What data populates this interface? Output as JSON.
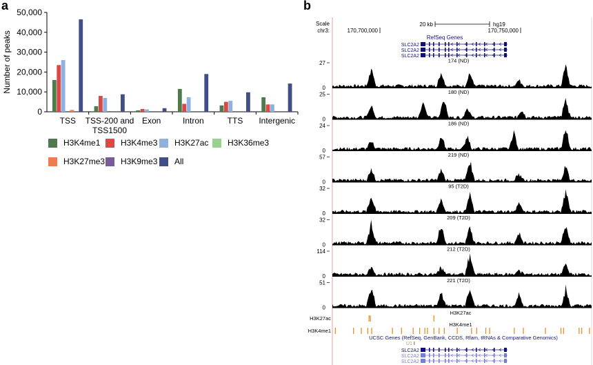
{
  "panel_a_label": "a",
  "panel_b_label": "b",
  "colors": {
    "H3K4me1": "#4f7a4e",
    "H3K4me3": "#d84a47",
    "H3K27ac": "#8fb0e0",
    "H3K36me3": "#9ad18f",
    "H3K27me3": "#ef7b50",
    "H3K9me3": "#7b5a9a",
    "All": "#414f86",
    "ucsc_blue": "#10107a",
    "ucsc_light": "#7b7ed0",
    "peak_orange": "#e0902a",
    "track_line": "#e8a0a0"
  },
  "chart_data": [
    {
      "type": "bar",
      "ylabel": "Number of peaks",
      "ylim": [
        0,
        50000
      ],
      "yticks": [
        "0",
        "10,000",
        "20,000",
        "30,000",
        "40,000",
        "50,000"
      ],
      "categories": [
        "TSS",
        "TSS-200 and\nTSS1500",
        "Exon",
        "Intron",
        "TTS",
        "Intergenic"
      ],
      "series": [
        {
          "name": "H3K4me1",
          "values": [
            16000,
            2800,
            700,
            11500,
            3200,
            7300
          ]
        },
        {
          "name": "H3K4me3",
          "values": [
            23500,
            8000,
            1400,
            4000,
            5000,
            3700
          ]
        },
        {
          "name": "H3K27ac",
          "values": [
            26000,
            7000,
            1200,
            7300,
            5500,
            3700
          ]
        },
        {
          "name": "H3K36me3",
          "values": [
            0,
            0,
            0,
            0,
            0,
            0
          ]
        },
        {
          "name": "H3K27me3",
          "values": [
            900,
            0,
            0,
            0,
            0,
            0
          ]
        },
        {
          "name": "H3K9me3",
          "values": [
            0,
            0,
            0,
            0,
            0,
            0
          ]
        },
        {
          "name": "All",
          "values": [
            46500,
            8800,
            1800,
            19000,
            9800,
            14200
          ]
        }
      ],
      "legend": "bottom"
    },
    {
      "type": "area",
      "header": {
        "scale_label": "Scale",
        "chrom_label": "chr3:",
        "scale_bar_label": "20 kb",
        "assembly": "hg19",
        "positions": [
          "170,700,000",
          "170,750,000"
        ],
        "refseq_title": "RefSeq Genes",
        "gene_label": "SLC2A2"
      },
      "tracks": [
        {
          "name": "174 (ND)",
          "ymax": "27",
          "peaks": [
            [
              0.15,
              0.9
            ],
            [
              0.42,
              0.7
            ],
            [
              0.53,
              0.6
            ],
            [
              0.72,
              0.3
            ],
            [
              0.9,
              1.0
            ]
          ]
        },
        {
          "name": "180 (ND)",
          "ymax": "25",
          "peaks": [
            [
              0.15,
              0.6
            ],
            [
              0.35,
              0.8
            ],
            [
              0.43,
              1.0
            ],
            [
              0.52,
              0.5
            ],
            [
              0.73,
              0.4
            ],
            [
              0.9,
              0.9
            ]
          ]
        },
        {
          "name": "186 (ND)",
          "ymax": "24",
          "peaks": [
            [
              0.15,
              0.4
            ],
            [
              0.42,
              0.6
            ],
            [
              0.52,
              0.6
            ],
            [
              0.7,
              0.8
            ],
            [
              0.9,
              1.0
            ]
          ]
        },
        {
          "name": "219 (ND)",
          "ymax": "57",
          "peaks": [
            [
              0.15,
              0.6
            ],
            [
              0.42,
              0.5
            ],
            [
              0.53,
              1.0
            ],
            [
              0.72,
              0.3
            ],
            [
              0.9,
              0.7
            ]
          ]
        },
        {
          "name": "95 (T2D)",
          "ymax": "32",
          "peaks": [
            [
              0.15,
              0.8
            ],
            [
              0.42,
              0.6
            ],
            [
              0.53,
              0.8
            ],
            [
              0.72,
              0.4
            ],
            [
              0.9,
              1.0
            ]
          ]
        },
        {
          "name": "209 (T2D)",
          "ymax": "32",
          "peaks": [
            [
              0.15,
              1.0
            ],
            [
              0.42,
              0.9
            ],
            [
              0.53,
              0.7
            ],
            [
              0.72,
              0.5
            ],
            [
              0.9,
              0.9
            ]
          ]
        },
        {
          "name": "212 (T2D)",
          "ymax": "114",
          "peaks": [
            [
              0.15,
              0.3
            ],
            [
              0.42,
              0.4
            ],
            [
              0.53,
              1.0
            ],
            [
              0.72,
              0.2
            ],
            [
              0.9,
              0.5
            ]
          ]
        },
        {
          "name": "221 (T2D)",
          "ymax": "51",
          "peaks": [
            [
              0.15,
              0.9
            ],
            [
              0.42,
              0.7
            ],
            [
              0.53,
              0.9
            ],
            [
              0.72,
              0.5
            ],
            [
              0.9,
              0.8
            ]
          ]
        }
      ],
      "y_min_label": "0",
      "peak_tracks": [
        {
          "name": "H3K27ac",
          "title": "H3K27ac",
          "marks": [
            0.14,
            0.145,
            0.39
          ]
        },
        {
          "name": "H3K4me1",
          "title": "H3K4me1",
          "marks": [
            0.01,
            0.08,
            0.11,
            0.135,
            0.15,
            0.23,
            0.265,
            0.31,
            0.335,
            0.355,
            0.365,
            0.39,
            0.41,
            0.43,
            0.48,
            0.535,
            0.555,
            0.59,
            0.605,
            0.7,
            0.735,
            0.82,
            0.88,
            0.89,
            0.95,
            0.96,
            0.99
          ]
        }
      ],
      "ucsc_title": "UCSC Genes (RefSeq, GenBank, CCDS, Rfam, tRNAs & Comparative Genomics)",
      "u1_label": "U1"
    }
  ],
  "legend": {
    "items": [
      {
        "label": "H3K4me1",
        "color_key": "H3K4me1"
      },
      {
        "label": "H3K4me3",
        "color_key": "H3K4me3"
      },
      {
        "label": "H3K27ac",
        "color_key": "H3K27ac"
      },
      {
        "label": "H3K36me3",
        "color_key": "H3K36me3"
      },
      {
        "label": "H3K27me3",
        "color_key": "H3K27me3"
      },
      {
        "label": "H3K9me3",
        "color_key": "H3K9me3"
      },
      {
        "label": "All",
        "color_key": "All"
      }
    ]
  }
}
